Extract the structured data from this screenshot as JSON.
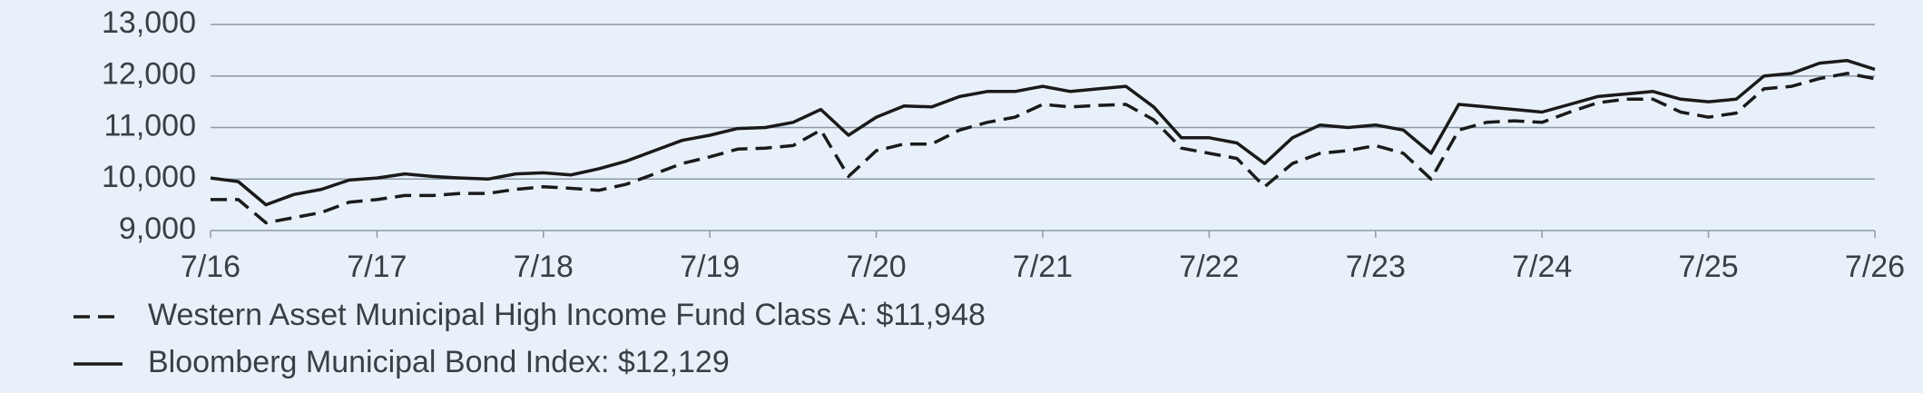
{
  "chart_data": {
    "type": "line",
    "categories": [
      "7/16",
      null,
      null,
      null,
      null,
      null,
      "7/17",
      null,
      null,
      null,
      null,
      null,
      "7/18",
      null,
      null,
      null,
      null,
      null,
      "7/19",
      null,
      null,
      null,
      null,
      null,
      "7/20",
      null,
      null,
      null,
      null,
      null,
      "7/21",
      null,
      null,
      null,
      null,
      null,
      "7/22",
      null,
      null,
      null,
      null,
      null,
      "7/23",
      null,
      null,
      null,
      null,
      null,
      "7/24",
      null,
      null,
      null,
      null,
      null,
      "7/25",
      null,
      null,
      null,
      null,
      null,
      "7/26"
    ],
    "series": [
      {
        "name": "Western Asset Municipal High Income Fund Class A: $11,948",
        "color": "#1a1a1a",
        "dash": true,
        "values": [
          9600,
          9600,
          9150,
          9250,
          9350,
          9550,
          9600,
          9680,
          9680,
          9720,
          9720,
          9800,
          9850,
          9820,
          9780,
          9900,
          10100,
          10300,
          10430,
          10580,
          10600,
          10650,
          10950,
          10050,
          10550,
          10680,
          10680,
          10950,
          11100,
          11200,
          11450,
          11400,
          11430,
          11450,
          11150,
          10600,
          10500,
          10400,
          9850,
          10300,
          10500,
          10550,
          10650,
          10500,
          10000,
          10950,
          11100,
          11130,
          11100,
          11300,
          11480,
          11550,
          11550,
          11300,
          11200,
          11280,
          11750,
          11800,
          11950,
          12050,
          11948
        ]
      },
      {
        "name": "Bloomberg Municipal Bond Index: $12,129",
        "color": "#1a1a1a",
        "dash": false,
        "values": [
          10020,
          9950,
          9500,
          9700,
          9800,
          9980,
          10020,
          10100,
          10050,
          10020,
          10000,
          10100,
          10120,
          10080,
          10200,
          10350,
          10550,
          10750,
          10850,
          10980,
          11000,
          11100,
          11350,
          10850,
          11200,
          11420,
          11400,
          11600,
          11700,
          11700,
          11800,
          11700,
          11750,
          11800,
          11400,
          10800,
          10800,
          10700,
          10300,
          10800,
          11050,
          11000,
          11050,
          10950,
          10500,
          11450,
          11400,
          11350,
          11300,
          11450,
          11600,
          11650,
          11700,
          11550,
          11500,
          11550,
          12000,
          12050,
          12250,
          12300,
          12129
        ]
      }
    ],
    "ylim": [
      9000,
      13000
    ],
    "yticks": [
      {
        "value": 9000,
        "label": "9,000"
      },
      {
        "value": 10000,
        "label": "10,000"
      },
      {
        "value": 11000,
        "label": "11,000"
      },
      {
        "value": 12000,
        "label": "12,000"
      },
      {
        "value": 13000,
        "label": "13,000"
      }
    ],
    "grid": true
  }
}
